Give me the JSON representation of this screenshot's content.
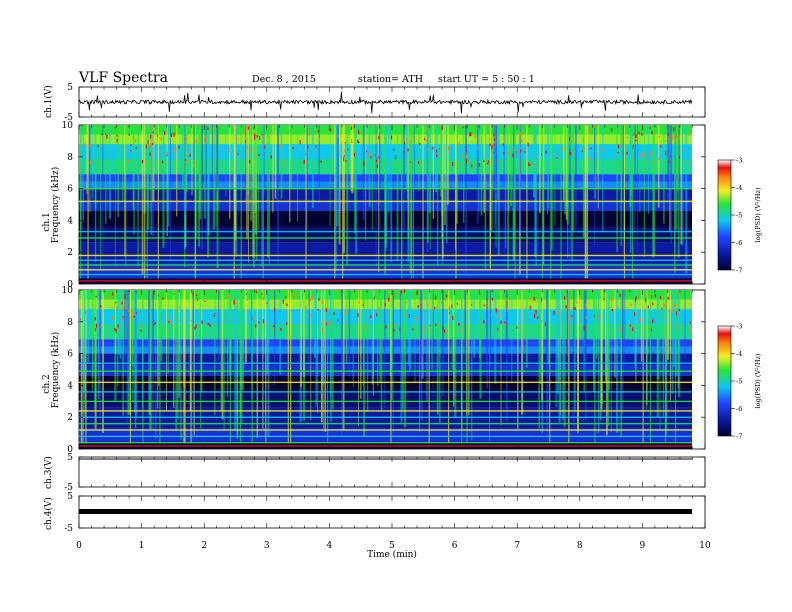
{
  "header": {
    "title": "VLF  Spectra",
    "date": "Dec. 8 , 2015",
    "station": "station= ATH",
    "start": "start  UT  =   5  : 50 : 1"
  },
  "colors": {
    "dark": "#000033",
    "navy": "#0b1aa0",
    "blue": "#1e45ff",
    "cyan": "#11c7ee",
    "green": "#28e43a",
    "yellow": "#f1f024",
    "orange": "#ff7e10",
    "red": "#e21010"
  },
  "chart_data": [
    {
      "type": "line",
      "name": "ch1-waveform",
      "ylabel": "ch.1(V)",
      "ylim": [
        -5,
        5
      ],
      "yticks": [
        "5",
        "-5"
      ],
      "baseline": 0,
      "description_values": "noise around 0 V with sparse spikes to about ±3 V"
    },
    {
      "type": "heatmap",
      "name": "ch1-spectrogram",
      "ylabel_line1": "ch.1",
      "ylabel_line2": "Frequency  (kHz)",
      "xlim": [
        0,
        10
      ],
      "ylim": [
        0,
        10
      ],
      "yticks": [
        "0",
        "2",
        "4",
        "6",
        "8",
        "10"
      ],
      "colorbar": {
        "label": "log(PSD) (V²/Hz)",
        "range": [
          -7,
          -3
        ],
        "ticks": [
          "-3",
          "-4",
          "-5",
          "-6",
          "-7"
        ]
      },
      "bands_khz": [
        0.3,
        0.6,
        0.9,
        1.2,
        1.5,
        1.8,
        2.9,
        3.3,
        5.2,
        6.0
      ]
    },
    {
      "type": "heatmap",
      "name": "ch2-spectrogram",
      "ylabel_line1": "ch.2",
      "ylabel_line2": "Frequency  (kHz)",
      "xlim": [
        0,
        10
      ],
      "ylim": [
        0,
        10
      ],
      "yticks": [
        "0",
        "2",
        "4",
        "6",
        "8",
        "10"
      ],
      "colorbar": {
        "label": "log(PSD) (V²/Hz)",
        "range": [
          -7,
          -3
        ],
        "ticks": [
          "-3",
          "-4",
          "-5",
          "-6",
          "-7"
        ]
      },
      "bands_khz": [
        0.4,
        0.8,
        1.2,
        1.6,
        2.0,
        2.4,
        3.0,
        3.6,
        4.2,
        4.9,
        5.4
      ]
    },
    {
      "type": "line",
      "name": "ch3-waveform",
      "ylabel": "ch.3(V)",
      "ylim": [
        -5,
        5
      ],
      "yticks": [
        "5",
        "-5"
      ],
      "baseline": 5
    },
    {
      "type": "line",
      "name": "ch4-waveform",
      "ylabel": "ch.4(V)",
      "ylim": [
        -5,
        5
      ],
      "yticks": [
        "5",
        "-5"
      ],
      "baseline": 0
    }
  ],
  "xaxis": {
    "label": "Time  (min)",
    "ticks": [
      "0",
      "1",
      "2",
      "3",
      "4",
      "5",
      "6",
      "7",
      "8",
      "9",
      "10"
    ],
    "xlim": [
      0,
      10
    ]
  }
}
